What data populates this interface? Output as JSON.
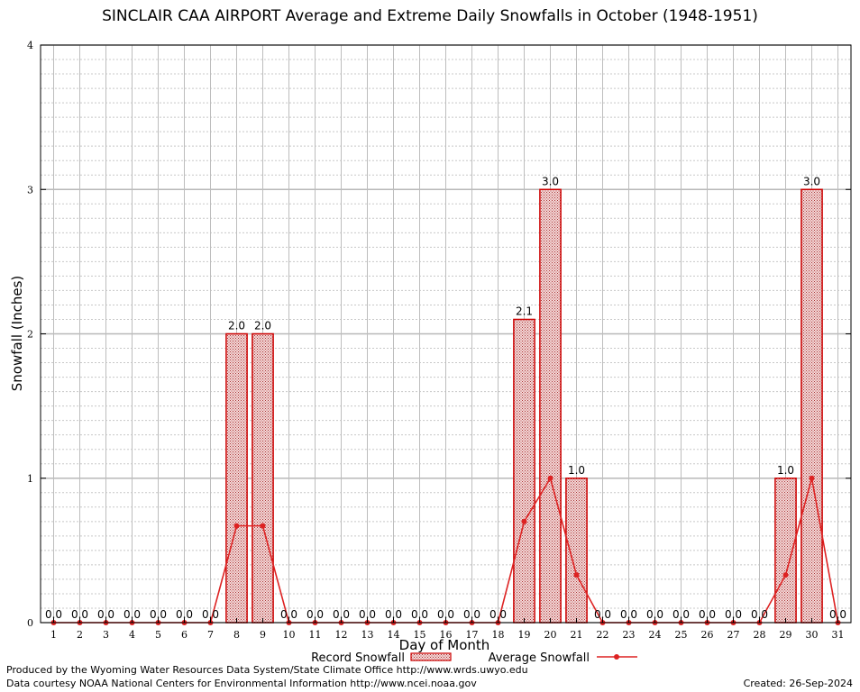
{
  "chart_data": {
    "type": "bar",
    "title": "SINCLAIR CAA AIRPORT Average and Extreme Daily Snowfalls in October (1948-1951)",
    "xlabel": "Day of Month",
    "ylabel": "Snowfall (Inches)",
    "ylim": [
      0,
      4
    ],
    "yticks": [
      "0",
      "1",
      "2",
      "3",
      "4"
    ],
    "categories": [
      "1",
      "2",
      "3",
      "4",
      "5",
      "6",
      "7",
      "8",
      "9",
      "10",
      "11",
      "12",
      "13",
      "14",
      "15",
      "16",
      "17",
      "18",
      "19",
      "20",
      "21",
      "22",
      "23",
      "24",
      "25",
      "26",
      "27",
      "28",
      "29",
      "30",
      "31"
    ],
    "series": [
      {
        "name": "Record Snowfall",
        "type": "bar",
        "color": "#cc0000",
        "values": [
          0,
          0,
          0,
          0,
          0,
          0,
          0,
          2.0,
          2.0,
          0,
          0,
          0,
          0,
          0,
          0,
          0,
          0,
          0,
          2.1,
          3.0,
          1.0,
          0,
          0,
          0,
          0,
          0,
          0,
          0,
          1.0,
          3.0,
          0
        ],
        "labels": [
          "0.0",
          "0.0",
          "0.0",
          "0.0",
          "0.0",
          "0.0",
          "0.0",
          "2.0",
          "2.0",
          "0.0",
          "0.0",
          "0.0",
          "0.0",
          "0.0",
          "0.0",
          "0.0",
          "0.0",
          "0.0",
          "2.1",
          "3.0",
          "1.0",
          "0.0",
          "0.0",
          "0.0",
          "0.0",
          "0.0",
          "0.0",
          "0.0",
          "1.0",
          "3.0",
          "0.0"
        ]
      },
      {
        "name": "Average Snowfall",
        "type": "line",
        "color": "#dd2222",
        "values": [
          0,
          0,
          0,
          0,
          0,
          0,
          0,
          0.67,
          0.67,
          0,
          0,
          0,
          0,
          0,
          0,
          0,
          0,
          0,
          0.7,
          1.0,
          0.33,
          0,
          0,
          0,
          0,
          0,
          0,
          0,
          0.33,
          1.0,
          0
        ]
      }
    ],
    "grid": true,
    "legend": "bottom"
  },
  "footer": {
    "credit_line_1": "Produced by the Wyoming Water Resources Data System/State Climate Office http://www.wrds.uwyo.edu",
    "credit_line_2": "Data courtesy NOAA National Centers for Environmental Information http://www.ncei.noaa.gov",
    "created": "Created:  26-Sep-2024"
  }
}
